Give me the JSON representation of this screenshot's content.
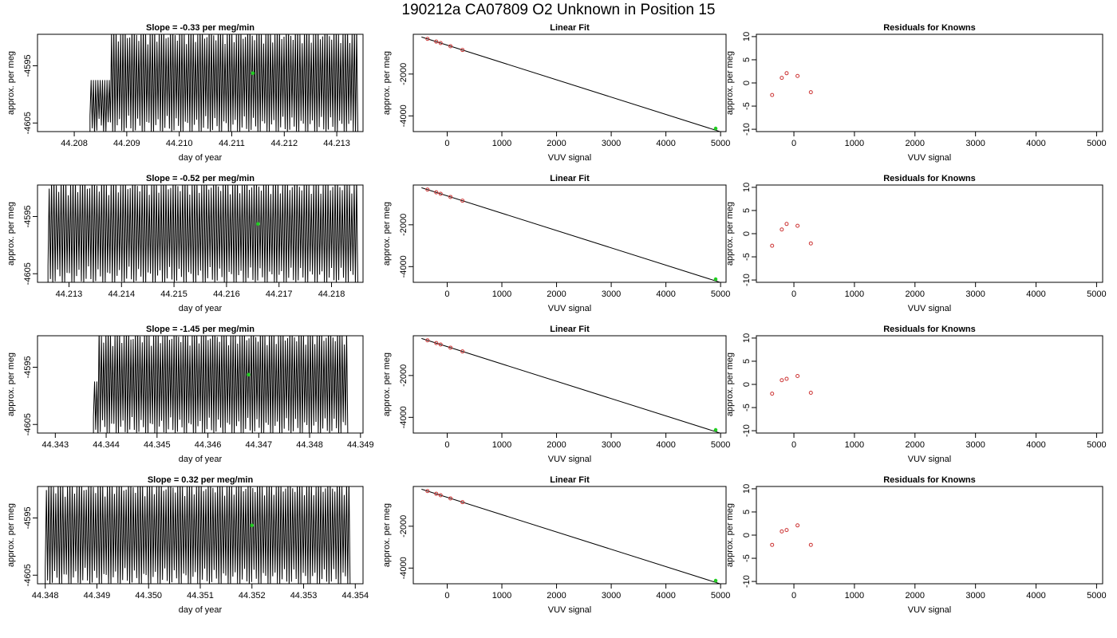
{
  "figure": {
    "title": "190212a     CA07809   O2 Unknown in Position  15"
  },
  "colors": {
    "axis": "#000000",
    "trace": "#000000",
    "known_points": "#cc3333",
    "unknown_point": "#22cc22",
    "fit_line": "#000000"
  },
  "chart_data": [
    {
      "type": "line",
      "title": "Slope =  -0.33  per meg/min",
      "xlabel": "day of year",
      "ylabel": "approx. per meg",
      "xlim": [
        44.2073,
        44.2135
      ],
      "ylim": [
        -4606.5,
        -4589.5
      ],
      "x_ticks": [
        "44.208",
        "44.209",
        "44.210",
        "44.211",
        "44.212",
        "44.213"
      ],
      "x_tick_values": [
        44.208,
        44.209,
        44.21,
        44.211,
        44.212,
        44.213
      ],
      "y_ticks": [
        "-4595",
        "-4605"
      ],
      "y_tick_values": [
        -4595,
        -4605
      ],
      "trace": {
        "start": 44.2083,
        "end": 44.2134,
        "cycles": 118,
        "mean": -4597.5,
        "amplitude": 9.5,
        "ramp_end": 44.2087
      },
      "unknown_point": {
        "x": 44.2114,
        "y": -4596.3
      }
    },
    {
      "type": "scatter",
      "title": "Linear Fit",
      "xlabel": "VUV signal",
      "ylabel": "approx. per meg",
      "xlim": [
        -620,
        5100
      ],
      "ylim": [
        -4750,
        -100
      ],
      "x_ticks": [
        "0",
        "1000",
        "2000",
        "3000",
        "4000",
        "5000"
      ],
      "x_tick_values": [
        0,
        1000,
        2000,
        3000,
        4000,
        5000
      ],
      "y_ticks": [
        "-2000",
        "-4000"
      ],
      "y_tick_values": [
        -2000,
        -4000
      ],
      "fit_line": {
        "x": [
          -470,
          5050
        ],
        "y": [
          -230,
          -4800
        ]
      },
      "known_points": {
        "x": [
          -360,
          -200,
          -120,
          60,
          280
        ],
        "y": [
          -320,
          -450,
          -520,
          -670,
          -850
        ]
      },
      "unknown_point": {
        "x": 4910,
        "y": -4600
      }
    },
    {
      "type": "scatter",
      "title": "Residuals for Knowns",
      "xlabel": "VUV signal",
      "ylabel": "approx. per meg",
      "xlim": [
        -620,
        5100
      ],
      "ylim": [
        -10.5,
        10.5
      ],
      "x_ticks": [
        "0",
        "1000",
        "2000",
        "3000",
        "4000",
        "5000"
      ],
      "x_tick_values": [
        0,
        1000,
        2000,
        3000,
        4000,
        5000
      ],
      "y_ticks": [
        "-10",
        "-5",
        "0",
        "5",
        "10"
      ],
      "y_tick_values": [
        -10,
        -5,
        0,
        5,
        10
      ],
      "known_points": {
        "x": [
          -360,
          -200,
          -120,
          60,
          280
        ],
        "y": [
          -2.6,
          1.1,
          2.1,
          1.5,
          -2.0
        ]
      }
    },
    {
      "type": "line",
      "title": "Slope =  -0.52  per meg/min",
      "xlabel": "day of year",
      "ylabel": "approx. per meg",
      "xlim": [
        44.2124,
        44.2186
      ],
      "ylim": [
        -4606.5,
        -4589.5
      ],
      "x_ticks": [
        "44.213",
        "44.214",
        "44.215",
        "44.216",
        "44.217",
        "44.218"
      ],
      "x_tick_values": [
        44.213,
        44.214,
        44.215,
        44.216,
        44.217,
        44.218
      ],
      "y_ticks": [
        "-4595",
        "-4605"
      ],
      "y_tick_values": [
        -4595,
        -4605
      ],
      "trace": {
        "start": 44.2126,
        "end": 44.2185,
        "cycles": 130,
        "mean": -4597.5,
        "amplitude": 9.5,
        "ramp_end": 44.2126
      },
      "unknown_point": {
        "x": 44.2166,
        "y": -4596.3
      }
    },
    {
      "type": "scatter",
      "title": "Linear Fit",
      "xlabel": "VUV signal",
      "ylabel": "approx. per meg",
      "xlim": [
        -620,
        5100
      ],
      "ylim": [
        -4750,
        -100
      ],
      "x_ticks": [
        "0",
        "1000",
        "2000",
        "3000",
        "4000",
        "5000"
      ],
      "x_tick_values": [
        0,
        1000,
        2000,
        3000,
        4000,
        5000
      ],
      "y_ticks": [
        "-2000",
        "-4000"
      ],
      "y_tick_values": [
        -2000,
        -4000
      ],
      "fit_line": {
        "x": [
          -470,
          5050
        ],
        "y": [
          -230,
          -4800
        ]
      },
      "known_points": {
        "x": [
          -360,
          -200,
          -120,
          60,
          280
        ],
        "y": [
          -320,
          -450,
          -520,
          -670,
          -850
        ]
      },
      "unknown_point": {
        "x": 4910,
        "y": -4600
      }
    },
    {
      "type": "scatter",
      "title": "Residuals for Knowns",
      "xlabel": "VUV signal",
      "ylabel": "approx. per meg",
      "xlim": [
        -620,
        5100
      ],
      "ylim": [
        -10.5,
        10.5
      ],
      "x_ticks": [
        "0",
        "1000",
        "2000",
        "3000",
        "4000",
        "5000"
      ],
      "x_tick_values": [
        0,
        1000,
        2000,
        3000,
        4000,
        5000
      ],
      "y_ticks": [
        "-10",
        "-5",
        "0",
        "5",
        "10"
      ],
      "y_tick_values": [
        -10,
        -5,
        0,
        5,
        10
      ],
      "known_points": {
        "x": [
          -360,
          -200,
          -120,
          60,
          280
        ],
        "y": [
          -2.6,
          0.9,
          2.1,
          1.7,
          -2.1
        ]
      }
    },
    {
      "type": "line",
      "title": "Slope =  -1.45  per meg/min",
      "xlabel": "day of year",
      "ylabel": "approx. per meg",
      "xlim": [
        44.34265,
        44.34905
      ],
      "ylim": [
        -4606.5,
        -4589.5
      ],
      "x_ticks": [
        "44.343",
        "44.344",
        "44.345",
        "44.346",
        "44.347",
        "44.348",
        "44.349"
      ],
      "x_tick_values": [
        44.343,
        44.344,
        44.345,
        44.346,
        44.347,
        44.348,
        44.349
      ],
      "y_ticks": [
        "-4595",
        "-4605"
      ],
      "y_tick_values": [
        -4595,
        -4605
      ],
      "trace": {
        "start": 44.34375,
        "end": 44.34875,
        "cycles": 112,
        "mean": -4597.5,
        "amplitude": 9.5,
        "ramp_end": 44.34385
      },
      "unknown_point": {
        "x": 44.3468,
        "y": -4596.3
      }
    },
    {
      "type": "scatter",
      "title": "Linear Fit",
      "xlabel": "VUV signal",
      "ylabel": "approx. per meg",
      "xlim": [
        -620,
        5100
      ],
      "ylim": [
        -4750,
        -100
      ],
      "x_ticks": [
        "0",
        "1000",
        "2000",
        "3000",
        "4000",
        "5000"
      ],
      "x_tick_values": [
        0,
        1000,
        2000,
        3000,
        4000,
        5000
      ],
      "y_ticks": [
        "-2000",
        "-4000"
      ],
      "y_tick_values": [
        -2000,
        -4000
      ],
      "fit_line": {
        "x": [
          -470,
          5050
        ],
        "y": [
          -230,
          -4800
        ]
      },
      "known_points": {
        "x": [
          -360,
          -200,
          -120,
          60,
          280
        ],
        "y": [
          -320,
          -450,
          -520,
          -670,
          -850
        ]
      },
      "unknown_point": {
        "x": 4910,
        "y": -4600
      }
    },
    {
      "type": "scatter",
      "title": "Residuals for Knowns",
      "xlabel": "VUV signal",
      "ylabel": "approx. per meg",
      "xlim": [
        -620,
        5100
      ],
      "ylim": [
        -10.5,
        10.5
      ],
      "x_ticks": [
        "0",
        "1000",
        "2000",
        "3000",
        "4000",
        "5000"
      ],
      "x_tick_values": [
        0,
        1000,
        2000,
        3000,
        4000,
        5000
      ],
      "y_ticks": [
        "-10",
        "-5",
        "0",
        "5",
        "10"
      ],
      "y_tick_values": [
        -10,
        -5,
        0,
        5,
        10
      ],
      "known_points": {
        "x": [
          -360,
          -200,
          -120,
          60,
          280
        ],
        "y": [
          -2.0,
          0.9,
          1.2,
          1.8,
          -1.8
        ]
      }
    },
    {
      "type": "line",
      "title": "Slope =  0.32  per meg/min",
      "xlabel": "day of year",
      "ylabel": "approx. per meg",
      "xlim": [
        44.34785,
        44.35415
      ],
      "ylim": [
        -4606.5,
        -4589.5
      ],
      "x_ticks": [
        "44.348",
        "44.349",
        "44.350",
        "44.351",
        "44.352",
        "44.353",
        "44.354"
      ],
      "x_tick_values": [
        44.348,
        44.349,
        44.35,
        44.351,
        44.352,
        44.353,
        44.354
      ],
      "y_ticks": [
        "-4595",
        "-4605"
      ],
      "y_tick_values": [
        -4595,
        -4605
      ],
      "trace": {
        "start": 44.348,
        "end": 44.3539,
        "cycles": 130,
        "mean": -4597.5,
        "amplitude": 9.5,
        "ramp_end": 44.348
      },
      "unknown_point": {
        "x": 44.352,
        "y": -4596.3
      }
    },
    {
      "type": "scatter",
      "title": "Linear Fit",
      "xlabel": "VUV signal",
      "ylabel": "approx. per meg",
      "xlim": [
        -620,
        5100
      ],
      "ylim": [
        -4750,
        -100
      ],
      "x_ticks": [
        "0",
        "1000",
        "2000",
        "3000",
        "4000",
        "5000"
      ],
      "x_tick_values": [
        0,
        1000,
        2000,
        3000,
        4000,
        5000
      ],
      "y_ticks": [
        "-2000",
        "-4000"
      ],
      "y_tick_values": [
        -2000,
        -4000
      ],
      "fit_line": {
        "x": [
          -470,
          5050
        ],
        "y": [
          -230,
          -4800
        ]
      },
      "known_points": {
        "x": [
          -360,
          -200,
          -120,
          60,
          280
        ],
        "y": [
          -320,
          -450,
          -520,
          -670,
          -850
        ]
      },
      "unknown_point": {
        "x": 4910,
        "y": -4600
      }
    },
    {
      "type": "scatter",
      "title": "Residuals for Knowns",
      "xlabel": "VUV signal",
      "ylabel": "approx. per meg",
      "xlim": [
        -620,
        5100
      ],
      "ylim": [
        -10.5,
        10.5
      ],
      "x_ticks": [
        "0",
        "1000",
        "2000",
        "3000",
        "4000",
        "5000"
      ],
      "x_tick_values": [
        0,
        1000,
        2000,
        3000,
        4000,
        5000
      ],
      "y_ticks": [
        "-10",
        "-5",
        "0",
        "5",
        "10"
      ],
      "y_tick_values": [
        -10,
        -5,
        0,
        5,
        10
      ],
      "known_points": {
        "x": [
          -360,
          -200,
          -120,
          60,
          280
        ],
        "y": [
          -2.1,
          0.8,
          1.1,
          2.1,
          -2.1
        ]
      }
    }
  ]
}
